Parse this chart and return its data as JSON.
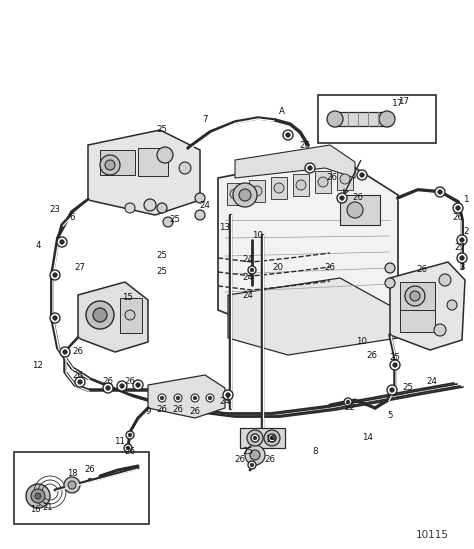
{
  "bg_color": "#ffffff",
  "fig_width": 4.74,
  "fig_height": 5.49,
  "dpi": 100,
  "part_number_text": "10115",
  "diagram_color": "#2a2a2a",
  "gray1": "#e8e8e8",
  "gray2": "#d0d0d0",
  "gray3": "#b0b0b0",
  "line_color": "#1a1a1a"
}
